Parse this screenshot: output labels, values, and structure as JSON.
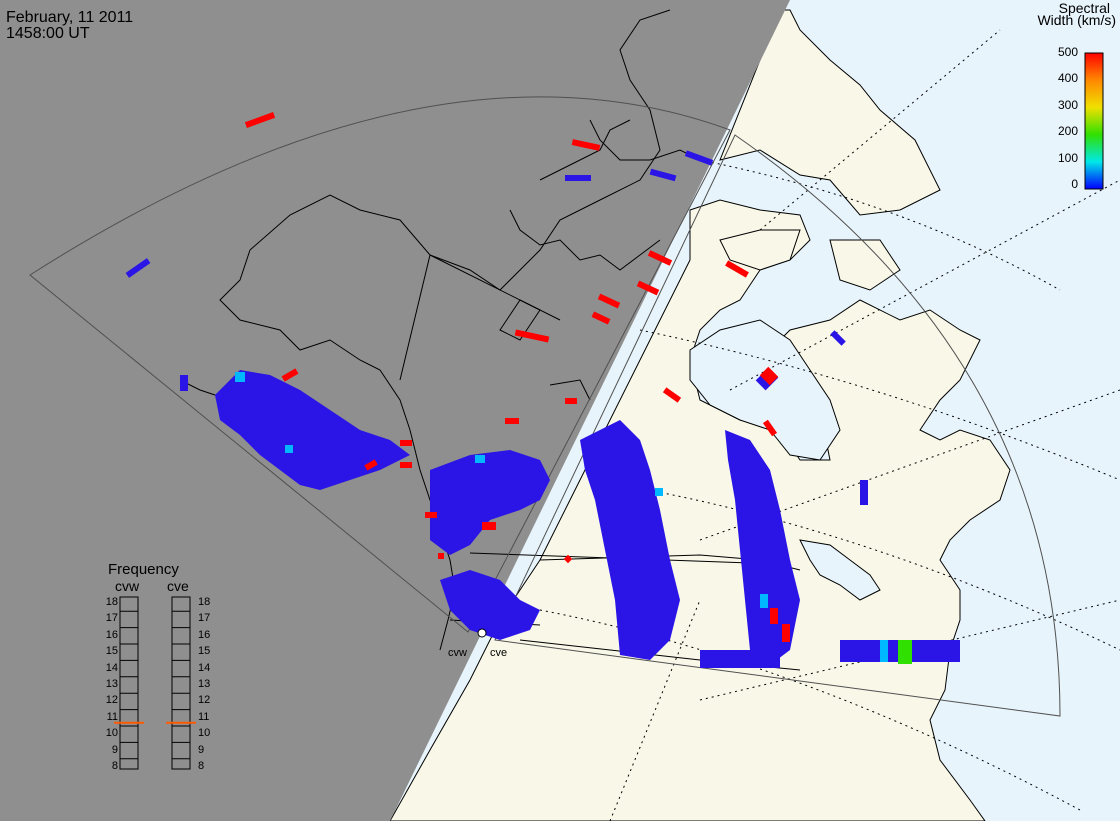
{
  "header": {
    "date": "February, 11 2011",
    "time": "1458:00 UT"
  },
  "colorbar": {
    "title_line1": "Spectral",
    "title_line2": "Width (km/s)",
    "ticks": [
      "500",
      "400",
      "300",
      "200",
      "100",
      "0"
    ],
    "colors": [
      "#ff0000",
      "#ff8800",
      "#f0e000",
      "#30e000",
      "#00e8e8",
      "#0000ff"
    ]
  },
  "frequency_panel": {
    "title": "Frequency",
    "columns": [
      {
        "label": "cvw",
        "marker_mhz": 10.7
      },
      {
        "label": "cve",
        "marker_mhz": 10.7
      }
    ],
    "ticks": [
      "18",
      "17",
      "16",
      "15",
      "14",
      "13",
      "12",
      "11",
      "10",
      "9",
      "8"
    ]
  },
  "stations": [
    {
      "label": "cvw"
    },
    {
      "label": "cve"
    }
  ],
  "map_colors": {
    "night": "#8f8f8f",
    "land_day": "#f8f7e8",
    "ocean_day": "#e8f4fb",
    "scatter_low": "#2a14e6",
    "scatter_high": "#ff0000",
    "scatter_mid": "#00b8ff"
  }
}
